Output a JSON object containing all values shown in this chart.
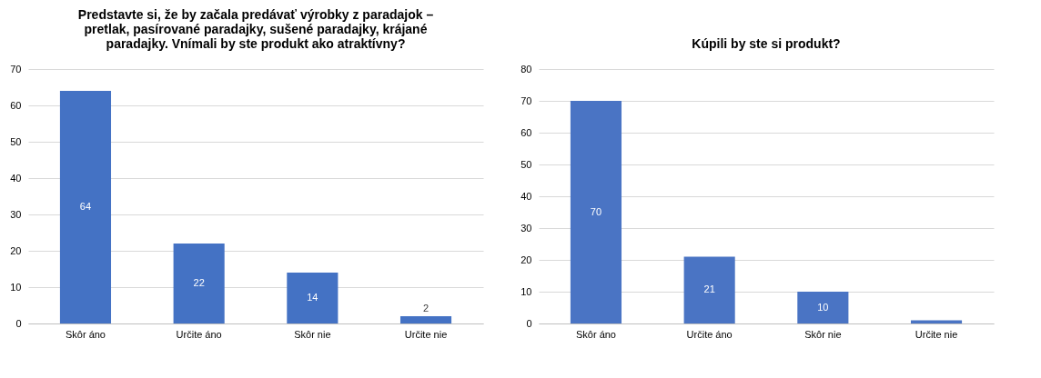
{
  "chart_data": [
    {
      "type": "bar",
      "title": "Predstavte si, že by začala predávať výrobky z paradajok – pretlak, pasírované paradajky, sušené paradajky, krájané paradajky. Vnímali by ste produkt ako atraktívny?",
      "categories": [
        "Skôr áno",
        "Určite áno",
        "Skôr nie",
        "Určite nie"
      ],
      "values": [
        64,
        22,
        14,
        2
      ],
      "color": "#4472c4",
      "ylim": [
        0,
        70
      ],
      "yticks": [
        0,
        10,
        20,
        30,
        40,
        50,
        60,
        70
      ],
      "grid": "y",
      "data_labels": true
    },
    {
      "type": "bar",
      "title": "Kúpili by ste si produkt?",
      "categories": [
        "Skôr áno",
        "Určite áno",
        "Skôr nie",
        "Určite nie"
      ],
      "values": [
        70,
        21,
        10,
        1
      ],
      "color": "#4a74c4",
      "ylim": [
        0,
        80
      ],
      "yticks": [
        0,
        10,
        20,
        30,
        40,
        50,
        60,
        70,
        80
      ],
      "grid": "y",
      "value_labels": [
        "70",
        "21",
        "10",
        null
      ]
    }
  ]
}
